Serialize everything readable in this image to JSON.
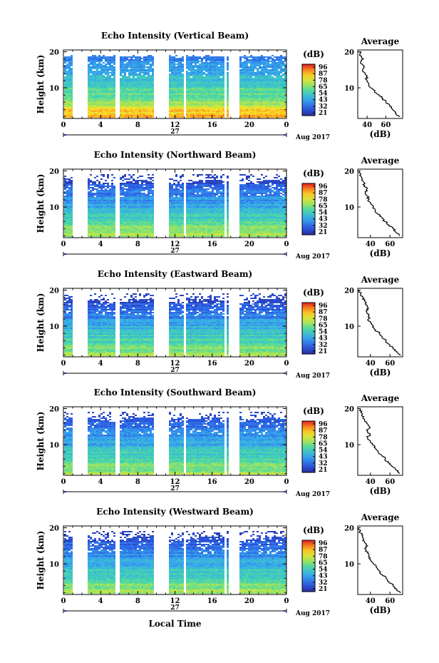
{
  "figure": {
    "date_label": "Aug 2017",
    "day_label": "27",
    "xlabel": "Local Time",
    "ylabel": "Height (km)",
    "colorbar_title": "(dB)",
    "colorbar_ticks": [
      "96",
      "87",
      "78",
      "65",
      "54",
      "43",
      "32",
      "21"
    ],
    "avg_title": "Average",
    "avg_xlabel": "(dB)"
  },
  "chart_data": [
    {
      "type": "heatmap",
      "title": "Echo Intensity (Vertical Beam)",
      "xlabel": "Local Time",
      "ylabel": "Height (km)",
      "x_ticks": [
        "0",
        "4",
        "8",
        "12",
        "16",
        "20",
        "0"
      ],
      "xlim": [
        0,
        24
      ],
      "y_ticks": [
        "20",
        "10"
      ],
      "ylim": [
        1.5,
        20.5
      ],
      "colorbar_unit": "dB",
      "colorbar_range": [
        21,
        96
      ],
      "data_gaps_hours": [
        [
          0.8,
          2.6
        ],
        [
          5.4,
          5.9
        ],
        [
          9.7,
          11.3
        ],
        [
          11.6,
          11.8
        ],
        [
          12.8,
          13.1
        ],
        [
          17.1,
          17.4
        ],
        [
          17.6,
          18.9
        ]
      ],
      "average_profile": {
        "title": "Average",
        "xlabel": "(dB)",
        "x_ticks": [
          "40",
          "60"
        ],
        "y_ticks": [
          "20",
          "10"
        ],
        "xlim": [
          30,
          78
        ],
        "height_km": [
          2,
          3,
          4,
          5,
          6,
          7,
          8,
          9,
          10,
          11,
          12,
          13,
          14,
          15,
          16,
          17,
          18,
          19,
          20
        ],
        "db": [
          75,
          70,
          67,
          64,
          60,
          57,
          53,
          48,
          44,
          42,
          40,
          39,
          38,
          35,
          37,
          33,
          36,
          32,
          34
        ]
      }
    },
    {
      "type": "heatmap",
      "title": "Echo Intensity (Northward Beam)",
      "xlabel": "Local Time",
      "ylabel": "Height (km)",
      "x_ticks": [
        "0",
        "4",
        "8",
        "12",
        "16",
        "20",
        "0"
      ],
      "xlim": [
        0,
        24
      ],
      "y_ticks": [
        "20",
        "10"
      ],
      "ylim": [
        1.5,
        20.5
      ],
      "colorbar_unit": "dB",
      "colorbar_range": [
        21,
        96
      ],
      "data_gaps_hours": [
        [
          0.8,
          2.6
        ],
        [
          5.4,
          5.9
        ],
        [
          9.7,
          11.3
        ],
        [
          11.6,
          11.8
        ],
        [
          12.8,
          13.1
        ],
        [
          17.1,
          17.4
        ],
        [
          17.6,
          18.9
        ]
      ],
      "average_profile": {
        "title": "Average",
        "xlabel": "(dB)",
        "x_ticks": [
          "40",
          "60"
        ],
        "y_ticks": [
          "20",
          "10"
        ],
        "xlim": [
          27,
          73
        ],
        "height_km": [
          2,
          3,
          4,
          5,
          6,
          7,
          8,
          9,
          10,
          11,
          12,
          13,
          14,
          15,
          16,
          17,
          18,
          19,
          20
        ],
        "db": [
          70,
          66,
          63,
          59,
          55,
          52,
          48,
          45,
          43,
          40,
          38,
          37,
          35,
          36,
          34,
          33,
          31,
          30,
          29
        ]
      }
    },
    {
      "type": "heatmap",
      "title": "Echo Intensity (Eastward Beam)",
      "xlabel": "Local Time",
      "ylabel": "Height (km)",
      "x_ticks": [
        "0",
        "4",
        "8",
        "12",
        "16",
        "20",
        "0"
      ],
      "xlim": [
        0,
        24
      ],
      "y_ticks": [
        "20",
        "10"
      ],
      "ylim": [
        1.5,
        20.5
      ],
      "colorbar_unit": "dB",
      "colorbar_range": [
        21,
        96
      ],
      "data_gaps_hours": [
        [
          0.8,
          2.6
        ],
        [
          5.4,
          5.9
        ],
        [
          9.7,
          11.3
        ],
        [
          11.6,
          11.8
        ],
        [
          12.8,
          13.1
        ],
        [
          17.1,
          17.4
        ],
        [
          17.6,
          18.9
        ]
      ],
      "average_profile": {
        "title": "Average",
        "xlabel": "(dB)",
        "x_ticks": [
          "40",
          "60"
        ],
        "y_ticks": [
          "20",
          "10"
        ],
        "xlim": [
          27,
          73
        ],
        "height_km": [
          2,
          3,
          4,
          5,
          6,
          7,
          8,
          9,
          10,
          11,
          12,
          13,
          14,
          15,
          16,
          17,
          18,
          19,
          20
        ],
        "db": [
          71,
          67,
          63,
          59,
          56,
          52,
          49,
          45,
          43,
          40,
          38,
          38,
          36,
          38,
          35,
          34,
          32,
          30,
          29
        ]
      }
    },
    {
      "type": "heatmap",
      "title": "Echo Intensity (Southward Beam)",
      "xlabel": "Local Time",
      "ylabel": "Height (km)",
      "x_ticks": [
        "0",
        "4",
        "8",
        "12",
        "16",
        "20",
        "0"
      ],
      "xlim": [
        0,
        24
      ],
      "y_ticks": [
        "20",
        "10"
      ],
      "ylim": [
        1.5,
        20.5
      ],
      "colorbar_unit": "dB",
      "colorbar_range": [
        21,
        96
      ],
      "data_gaps_hours": [
        [
          0.8,
          2.6
        ],
        [
          5.4,
          5.9
        ],
        [
          9.7,
          11.3
        ],
        [
          11.6,
          11.8
        ],
        [
          12.8,
          13.1
        ],
        [
          17.1,
          17.4
        ],
        [
          17.6,
          18.9
        ]
      ],
      "average_profile": {
        "title": "Average",
        "xlabel": "(dB)",
        "x_ticks": [
          "40",
          "60"
        ],
        "y_ticks": [
          "20",
          "10"
        ],
        "xlim": [
          27,
          73
        ],
        "height_km": [
          2,
          3,
          4,
          5,
          6,
          7,
          8,
          9,
          10,
          11,
          12,
          13,
          14,
          15,
          16,
          17,
          18,
          19,
          20
        ],
        "db": [
          70,
          66,
          62,
          58,
          55,
          52,
          48,
          45,
          42,
          40,
          37,
          40,
          36,
          39,
          36,
          34,
          31,
          30,
          29
        ]
      }
    },
    {
      "type": "heatmap",
      "title": "Echo Intensity (Westward Beam)",
      "xlabel": "Local Time",
      "ylabel": "Height (km)",
      "x_ticks": [
        "0",
        "4",
        "8",
        "12",
        "16",
        "20",
        "0"
      ],
      "xlim": [
        0,
        24
      ],
      "y_ticks": [
        "20",
        "10"
      ],
      "ylim": [
        1.5,
        20.5
      ],
      "colorbar_unit": "dB",
      "colorbar_range": [
        21,
        96
      ],
      "data_gaps_hours": [
        [
          0.8,
          2.6
        ],
        [
          5.4,
          5.9
        ],
        [
          9.7,
          11.3
        ],
        [
          11.6,
          11.8
        ],
        [
          12.8,
          13.1
        ],
        [
          17.1,
          17.4
        ],
        [
          17.6,
          18.9
        ]
      ],
      "average_profile": {
        "title": "Average",
        "xlabel": "(dB)",
        "x_ticks": [
          "40",
          "60"
        ],
        "y_ticks": [
          "20",
          "10"
        ],
        "xlim": [
          27,
          73
        ],
        "height_km": [
          2,
          3,
          4,
          5,
          6,
          7,
          8,
          9,
          10,
          11,
          12,
          13,
          14,
          15,
          16,
          17,
          18,
          19,
          20
        ],
        "db": [
          71,
          67,
          63,
          59,
          56,
          52,
          49,
          46,
          43,
          40,
          38,
          37,
          35,
          37,
          34,
          33,
          31,
          29,
          28
        ]
      }
    }
  ]
}
